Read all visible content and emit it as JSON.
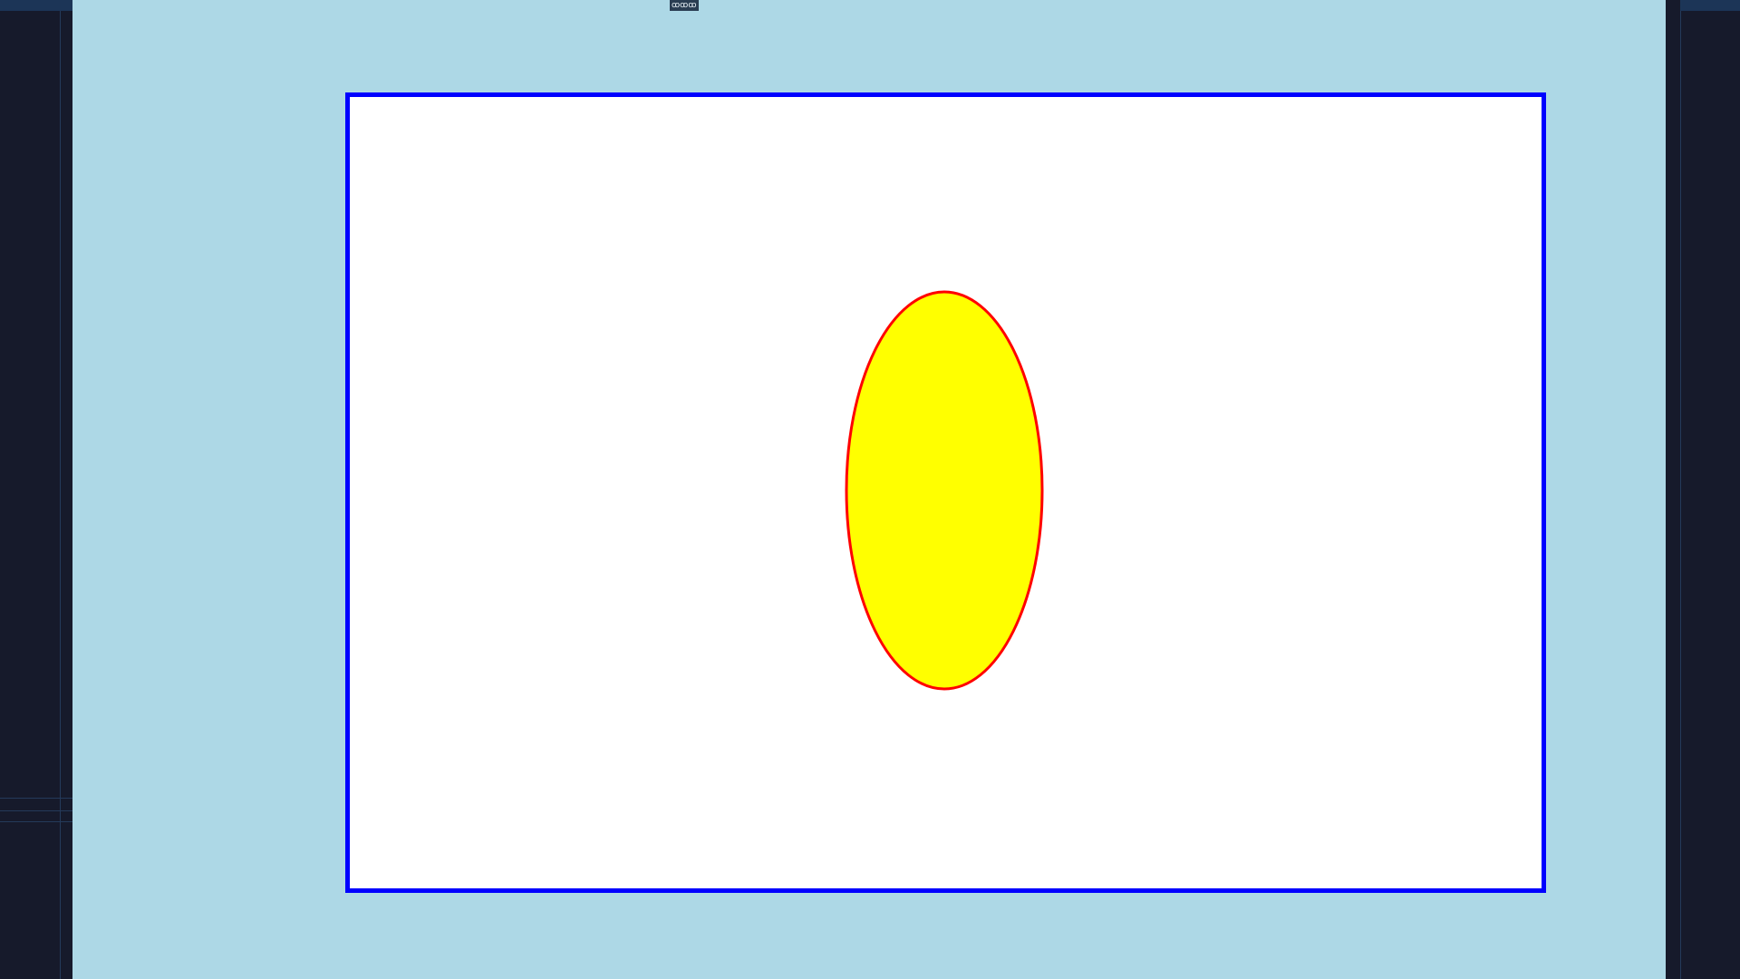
{
  "window": {
    "title_badge": "ꝏꝏꝏ"
  },
  "canvas": {
    "background": "#ffffff",
    "border_color": "#0000ff"
  },
  "stage": {
    "background": "#add8e6"
  },
  "shape": {
    "kind": "ellipse",
    "fill": "#ffff00",
    "stroke": "#ff0000"
  },
  "chrome": {
    "sidebar_color": "#161a2b",
    "accent_line_color": "#243a5a"
  }
}
